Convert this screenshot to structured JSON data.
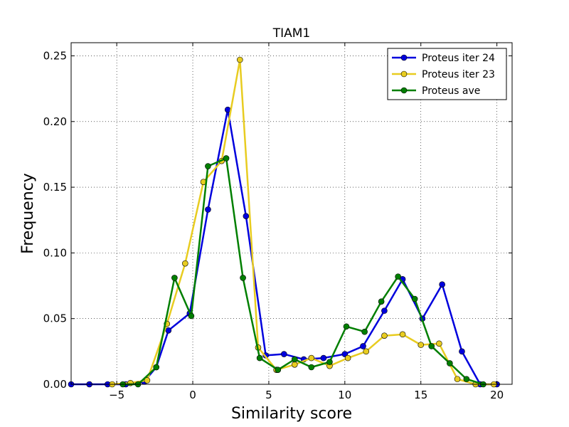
{
  "chart_data": {
    "type": "line",
    "title": "TIAM1",
    "xlabel": "Similarity score",
    "ylabel": "Frequency",
    "xlim": [
      -8,
      21
    ],
    "ylim": [
      0,
      0.26
    ],
    "xticks": [
      -5,
      0,
      5,
      10,
      15,
      20
    ],
    "xtick_labels": [
      "−5",
      "0",
      "5",
      "10",
      "15",
      "20"
    ],
    "yticks": [
      0.0,
      0.05,
      0.1,
      0.15,
      0.2,
      0.25
    ],
    "ytick_labels": [
      "0.00",
      "0.05",
      "0.10",
      "0.15",
      "0.20",
      "0.25"
    ],
    "grid": true,
    "legend_position": "top-right",
    "series": [
      {
        "name": "Proteus iter 24",
        "color": "#0000dd",
        "x": [
          -8.0,
          -6.8,
          -5.6,
          -4.4,
          -3.2,
          -2.4,
          -1.6,
          -0.2,
          1.0,
          2.3,
          3.5,
          4.8,
          6.0,
          7.3,
          8.6,
          10.0,
          11.2,
          12.6,
          13.8,
          15.1,
          16.4,
          17.7,
          18.9,
          20.0
        ],
        "y": [
          0.0,
          0.0,
          0.0,
          0.0,
          0.002,
          0.013,
          0.041,
          0.054,
          0.133,
          0.209,
          0.128,
          0.022,
          0.023,
          0.019,
          0.02,
          0.023,
          0.029,
          0.056,
          0.08,
          0.05,
          0.076,
          0.025,
          0.0,
          0.0
        ]
      },
      {
        "name": "Proteus iter 23",
        "color": "#e8cc20",
        "x": [
          -5.3,
          -4.1,
          -3.0,
          -1.7,
          -0.5,
          0.7,
          1.9,
          3.1,
          4.3,
          5.5,
          6.7,
          7.8,
          9.0,
          10.2,
          11.4,
          12.6,
          13.8,
          15.0,
          16.2,
          17.4,
          18.6,
          19.8
        ],
        "y": [
          0.0,
          0.001,
          0.003,
          0.046,
          0.092,
          0.154,
          0.17,
          0.247,
          0.028,
          0.011,
          0.015,
          0.02,
          0.014,
          0.02,
          0.025,
          0.037,
          0.038,
          0.03,
          0.031,
          0.004,
          0.0,
          0.0
        ]
      },
      {
        "name": "Proteus ave",
        "color": "#007f00",
        "x": [
          -4.6,
          -3.6,
          -2.4,
          -1.2,
          -0.1,
          1.0,
          2.2,
          3.3,
          4.4,
          5.6,
          6.7,
          7.8,
          9.0,
          10.1,
          11.3,
          12.4,
          13.5,
          14.6,
          15.7,
          16.9,
          18.0,
          19.1
        ],
        "y": [
          0.0,
          0.0,
          0.013,
          0.081,
          0.052,
          0.166,
          0.172,
          0.081,
          0.02,
          0.011,
          0.019,
          0.013,
          0.017,
          0.044,
          0.04,
          0.063,
          0.082,
          0.065,
          0.029,
          0.016,
          0.004,
          0.0
        ]
      }
    ]
  }
}
